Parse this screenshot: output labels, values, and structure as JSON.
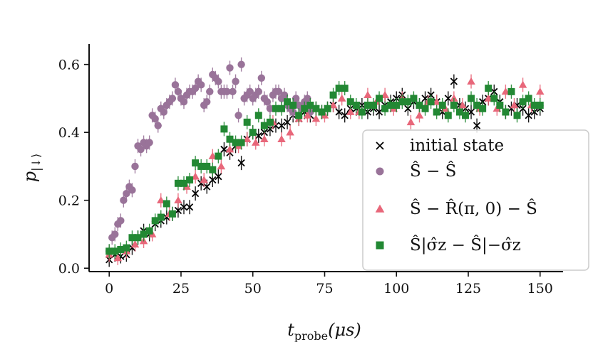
{
  "chart_data": {
    "type": "scatter",
    "xlabel": "t_probe(μs)",
    "ylabel": "p_|↓⟩",
    "xlim": [
      -7,
      158
    ],
    "ylim": [
      -0.01,
      0.66
    ],
    "xticks": [
      0,
      25,
      50,
      75,
      100,
      125,
      150
    ],
    "yticks": [
      0.0,
      0.2,
      0.4,
      0.6
    ],
    "xtick_labels": [
      "0",
      "25",
      "50",
      "75",
      "100",
      "125",
      "150"
    ],
    "ytick_labels": [
      "0.0",
      "0.2",
      "0.4",
      "0.6"
    ],
    "legend_position": "lower-right",
    "series": [
      {
        "name": "initial state",
        "marker": "x",
        "color": "#000000",
        "x": [
          0,
          2,
          4,
          6,
          8,
          10,
          12,
          14,
          16,
          18,
          20,
          22,
          24,
          26,
          28,
          30,
          32,
          34,
          36,
          38,
          40,
          42,
          44,
          46,
          48,
          50,
          52,
          54,
          56,
          58,
          60,
          62,
          64,
          66,
          68,
          70,
          72,
          74,
          76,
          78,
          80,
          82,
          84,
          86,
          88,
          90,
          92,
          94,
          96,
          98,
          100,
          102,
          104,
          106,
          108,
          110,
          112,
          114,
          116,
          118,
          120,
          122,
          124,
          126,
          128,
          130,
          132,
          134,
          136,
          138,
          140,
          142,
          144,
          146,
          148,
          150
        ],
        "y": [
          0.025,
          0.04,
          0.035,
          0.04,
          0.06,
          0.09,
          0.11,
          0.1,
          0.13,
          0.14,
          0.15,
          0.16,
          0.17,
          0.18,
          0.18,
          0.22,
          0.25,
          0.24,
          0.26,
          0.27,
          0.35,
          0.34,
          0.36,
          0.31,
          0.38,
          0.4,
          0.39,
          0.4,
          0.41,
          0.42,
          0.42,
          0.43,
          0.45,
          0.44,
          0.46,
          0.45,
          0.47,
          0.46,
          0.47,
          0.48,
          0.46,
          0.45,
          0.47,
          0.47,
          0.48,
          0.46,
          0.47,
          0.46,
          0.48,
          0.49,
          0.5,
          0.51,
          0.47,
          0.49,
          0.48,
          0.5,
          0.51,
          0.49,
          0.46,
          0.5,
          0.55,
          0.48,
          0.47,
          0.46,
          0.42,
          0.49,
          0.5,
          0.52,
          0.49,
          0.46,
          0.47,
          0.48,
          0.47,
          0.45,
          0.46,
          0.47
        ]
      },
      {
        "name": "Ŝ − Ŝ",
        "marker": "circle",
        "color": "#997399",
        "x": [
          0,
          1,
          2,
          3,
          4,
          5,
          6,
          7,
          8,
          9,
          10,
          11,
          12,
          13,
          14,
          15,
          16,
          17,
          18,
          19,
          20,
          21,
          22,
          23,
          24,
          25,
          26,
          27,
          28,
          29,
          30,
          31,
          32,
          33,
          34,
          35,
          36,
          37,
          38,
          39,
          40,
          41,
          42,
          43,
          44,
          45,
          46,
          47,
          48,
          49,
          50,
          51,
          52,
          53,
          54,
          55,
          56,
          57,
          58,
          59,
          60,
          61,
          62,
          63,
          64,
          65,
          66,
          67,
          68,
          69,
          70
        ],
        "y": [
          0.05,
          0.09,
          0.1,
          0.13,
          0.14,
          0.2,
          0.22,
          0.24,
          0.23,
          0.3,
          0.36,
          0.35,
          0.37,
          0.36,
          0.37,
          0.45,
          0.44,
          0.42,
          0.47,
          0.46,
          0.48,
          0.49,
          0.5,
          0.54,
          0.52,
          0.5,
          0.49,
          0.51,
          0.52,
          0.52,
          0.53,
          0.55,
          0.54,
          0.48,
          0.49,
          0.52,
          0.57,
          0.56,
          0.55,
          0.52,
          0.52,
          0.52,
          0.59,
          0.52,
          0.55,
          0.45,
          0.6,
          0.5,
          0.51,
          0.52,
          0.5,
          0.51,
          0.52,
          0.56,
          0.5,
          0.49,
          0.47,
          0.51,
          0.52,
          0.52,
          0.5,
          0.51,
          0.48,
          0.47,
          0.46,
          0.5,
          0.48,
          0.47,
          0.49,
          0.5,
          0.46
        ]
      },
      {
        "name": "Ŝ − R̂(π,0) − Ŝ",
        "marker": "triangle",
        "color": "#e8677a",
        "x": [
          0,
          3,
          6,
          9,
          12,
          15,
          18,
          21,
          24,
          27,
          30,
          33,
          36,
          39,
          42,
          45,
          48,
          51,
          54,
          57,
          60,
          63,
          66,
          69,
          72,
          75,
          78,
          81,
          84,
          87,
          90,
          93,
          96,
          99,
          102,
          105,
          108,
          111,
          114,
          117,
          120,
          123,
          126,
          129,
          132,
          135,
          138,
          141,
          144,
          147,
          150
        ],
        "y": [
          0.04,
          0.03,
          0.05,
          0.07,
          0.08,
          0.1,
          0.2,
          0.16,
          0.2,
          0.24,
          0.27,
          0.26,
          0.33,
          0.3,
          0.35,
          0.36,
          0.38,
          0.37,
          0.38,
          0.43,
          0.38,
          0.4,
          0.44,
          0.45,
          0.44,
          0.45,
          0.48,
          0.5,
          0.46,
          0.46,
          0.51,
          0.49,
          0.51,
          0.47,
          0.5,
          0.43,
          0.45,
          0.49,
          0.49,
          0.47,
          0.5,
          0.48,
          0.55,
          0.47,
          0.5,
          0.47,
          0.52,
          0.48,
          0.54,
          0.48,
          0.52
        ]
      },
      {
        "name": "Ŝ|σ̂z − Ŝ|−σ̂z",
        "marker": "square",
        "color": "#228833",
        "x": [
          0,
          2,
          4,
          6,
          8,
          10,
          12,
          14,
          16,
          18,
          20,
          22,
          24,
          26,
          28,
          30,
          32,
          34,
          36,
          38,
          40,
          42,
          44,
          46,
          48,
          50,
          52,
          54,
          56,
          58,
          60,
          62,
          64,
          66,
          68,
          70,
          72,
          74,
          76,
          78,
          80,
          82,
          84,
          86,
          88,
          90,
          92,
          94,
          96,
          98,
          100,
          102,
          104,
          106,
          108,
          110,
          112,
          114,
          116,
          118,
          120,
          122,
          124,
          126,
          128,
          130,
          132,
          134,
          136,
          138,
          140,
          142,
          144,
          146,
          148,
          150
        ],
        "y": [
          0.05,
          0.05,
          0.055,
          0.06,
          0.09,
          0.09,
          0.1,
          0.11,
          0.14,
          0.15,
          0.19,
          0.16,
          0.25,
          0.25,
          0.26,
          0.31,
          0.3,
          0.3,
          0.29,
          0.33,
          0.41,
          0.38,
          0.37,
          0.37,
          0.43,
          0.4,
          0.45,
          0.42,
          0.43,
          0.47,
          0.47,
          0.49,
          0.48,
          0.45,
          0.47,
          0.48,
          0.47,
          0.46,
          0.47,
          0.51,
          0.53,
          0.53,
          0.49,
          0.48,
          0.46,
          0.48,
          0.48,
          0.5,
          0.47,
          0.48,
          0.48,
          0.49,
          0.49,
          0.5,
          0.48,
          0.47,
          0.49,
          0.46,
          0.48,
          0.45,
          0.48,
          0.46,
          0.45,
          0.5,
          0.48,
          0.47,
          0.53,
          0.5,
          0.48,
          0.46,
          0.52,
          0.45,
          0.49,
          0.5,
          0.48,
          0.48
        ]
      }
    ]
  },
  "axes": {
    "xlabel_main": "t",
    "xlabel_sub": "probe",
    "xlabel_unit": "(μs)",
    "ylabel_main": "p",
    "ylabel_sub": "|↓⟩"
  },
  "legend": {
    "entries": [
      {
        "label": "initial state",
        "color": "#000000",
        "marker": "x"
      },
      {
        "label": "Ŝ − Ŝ",
        "color": "#997399",
        "marker": "circle"
      },
      {
        "label": "Ŝ − R̂(π, 0) − Ŝ",
        "color": "#e8677a",
        "marker": "triangle"
      },
      {
        "label": "Ŝ|σ̂z − Ŝ|−σ̂z",
        "color": "#228833",
        "marker": "square"
      }
    ]
  }
}
